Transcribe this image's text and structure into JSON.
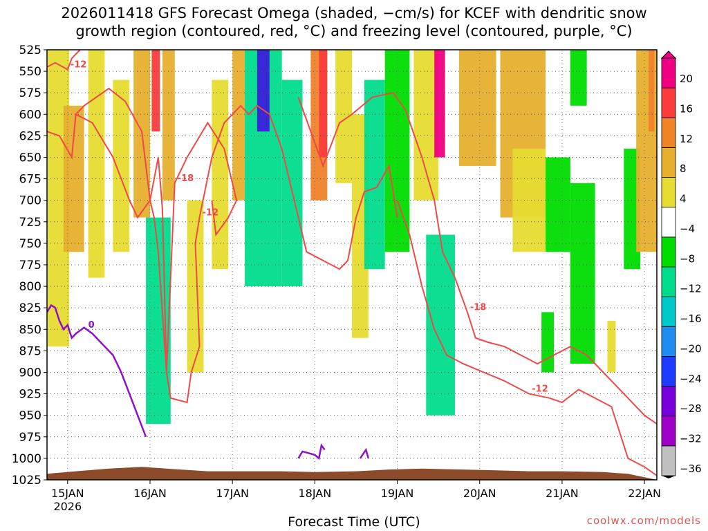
{
  "title_line1": "2026011418 GFS Forecast Omega (shaded, −cm/s) for KCEF with dendritic snow",
  "title_line2": "growth region (contoured, red, °C) and freezing level (contoured, purple, °C)",
  "xlabel": "Forecast Time (UTC)",
  "credit": "coolwx.com/models",
  "colors": {
    "dgz_contour": "#f04848",
    "freezing_contour": "#9010c8",
    "terrain": "#8b4a2a",
    "colorbar": [
      "#c0c0c0",
      "#a000c8",
      "#7800dc",
      "#1e3cff",
      "#1e8cf0",
      "#00c8c8",
      "#00dc8c",
      "#00dc00",
      "#ffffff",
      "#e6dc32",
      "#e6af2d",
      "#f08228",
      "#fa3c3c",
      "#f00082"
    ]
  },
  "chart_data": {
    "type": "heatmap",
    "title": "2026011418 GFS Forecast Omega (shaded, −cm/s) for KCEF with dendritic snow growth region (contoured, red, °C) and freezing level (contoured, purple, °C)",
    "xlabel": "Forecast Time (UTC)",
    "ylabel": "",
    "y_ticks": [
      "525",
      "550",
      "575",
      "600",
      "625",
      "650",
      "675",
      "700",
      "725",
      "750",
      "775",
      "800",
      "825",
      "850",
      "875",
      "900",
      "925",
      "950",
      "975",
      "1000",
      "1025"
    ],
    "x_ticks": [
      "15JAN",
      "16JAN",
      "17JAN",
      "18JAN",
      "19JAN",
      "20JAN",
      "21JAN",
      "22JAN"
    ],
    "x_year_label": "2026",
    "ylim": [
      1025,
      525
    ],
    "x_range_days": [
      14.75,
      22.15
    ],
    "grid": true,
    "colorbar": {
      "ticks": [
        "20",
        "16",
        "12",
        "8",
        "4",
        "−4",
        "−8",
        "−12",
        "−16",
        "−20",
        "−24",
        "−28",
        "−32",
        "−36"
      ],
      "bounds": [
        -36,
        -32,
        -28,
        -24,
        -20,
        -16,
        -12,
        -8,
        -4,
        4,
        8,
        12,
        16,
        20
      ]
    },
    "shaded_regions": [
      {
        "t0": 14.76,
        "t1": 15.02,
        "p_top": 525,
        "p_bot": 870,
        "class": "4-8"
      },
      {
        "t0": 14.95,
        "t1": 15.2,
        "p_top": 590,
        "p_bot": 760,
        "class": "8-12"
      },
      {
        "t0": 15.25,
        "t1": 15.45,
        "p_top": 525,
        "p_bot": 790,
        "class": "4-8"
      },
      {
        "t0": 15.55,
        "t1": 15.75,
        "p_top": 560,
        "p_bot": 760,
        "class": "4-8"
      },
      {
        "t0": 15.8,
        "t1": 16.0,
        "p_top": 525,
        "p_bot": 720,
        "class": "8-12"
      },
      {
        "t0": 15.95,
        "t1": 16.25,
        "p_top": 720,
        "p_bot": 960,
        "class": "-8--12"
      },
      {
        "t0": 16.02,
        "t1": 16.12,
        "p_top": 525,
        "p_bot": 620,
        "class": "16-20"
      },
      {
        "t0": 16.15,
        "t1": 16.3,
        "p_top": 525,
        "p_bot": 700,
        "class": "8-12"
      },
      {
        "t0": 16.45,
        "t1": 16.65,
        "p_top": 700,
        "p_bot": 900,
        "class": "4-8"
      },
      {
        "t0": 16.75,
        "t1": 16.95,
        "p_top": 560,
        "p_bot": 780,
        "class": "4-8"
      },
      {
        "t0": 17.0,
        "t1": 17.15,
        "p_top": 525,
        "p_bot": 700,
        "class": "8-12"
      },
      {
        "t0": 17.15,
        "t1": 17.6,
        "p_top": 525,
        "p_bot": 800,
        "class": "-8--12"
      },
      {
        "t0": 17.3,
        "t1": 17.45,
        "p_top": 525,
        "p_bot": 620,
        "class": "-24--28"
      },
      {
        "t0": 17.6,
        "t1": 17.85,
        "p_top": 560,
        "p_bot": 800,
        "class": "-8--12"
      },
      {
        "t0": 17.95,
        "t1": 18.15,
        "p_top": 525,
        "p_bot": 700,
        "class": "12-16"
      },
      {
        "t0": 18.05,
        "t1": 18.15,
        "p_top": 525,
        "p_bot": 650,
        "class": "16-20"
      },
      {
        "t0": 18.25,
        "t1": 18.45,
        "p_top": 525,
        "p_bot": 680,
        "class": "4-8"
      },
      {
        "t0": 18.45,
        "t1": 18.65,
        "p_top": 600,
        "p_bot": 860,
        "class": "4-8"
      },
      {
        "t0": 18.6,
        "t1": 18.85,
        "p_top": 560,
        "p_bot": 780,
        "class": "-8--12"
      },
      {
        "t0": 18.85,
        "t1": 19.15,
        "p_top": 525,
        "p_bot": 760,
        "class": "-4--8"
      },
      {
        "t0": 19.2,
        "t1": 19.5,
        "p_top": 525,
        "p_bot": 700,
        "class": "4-8"
      },
      {
        "t0": 19.45,
        "t1": 19.58,
        "p_top": 525,
        "p_bot": 650,
        "class": "20+"
      },
      {
        "t0": 19.35,
        "t1": 19.7,
        "p_top": 740,
        "p_bot": 950,
        "class": "-8--12"
      },
      {
        "t0": 19.75,
        "t1": 20.2,
        "p_top": 525,
        "p_bot": 660,
        "class": "8-12"
      },
      {
        "t0": 20.25,
        "t1": 20.8,
        "p_top": 525,
        "p_bot": 720,
        "class": "8-12"
      },
      {
        "t0": 20.4,
        "t1": 20.8,
        "p_top": 640,
        "p_bot": 760,
        "class": "4-8"
      },
      {
        "t0": 20.8,
        "t1": 21.1,
        "p_top": 650,
        "p_bot": 760,
        "class": "-4--8"
      },
      {
        "t0": 20.75,
        "t1": 20.9,
        "p_top": 830,
        "p_bot": 900,
        "class": "-4--8"
      },
      {
        "t0": 21.1,
        "t1": 21.3,
        "p_top": 525,
        "p_bot": 590,
        "class": "-4--8"
      },
      {
        "t0": 21.1,
        "t1": 21.4,
        "p_top": 680,
        "p_bot": 890,
        "class": "-4--8"
      },
      {
        "t0": 21.55,
        "t1": 21.65,
        "p_top": 840,
        "p_bot": 900,
        "class": "4-8"
      },
      {
        "t0": 21.75,
        "t1": 21.95,
        "p_top": 640,
        "p_bot": 780,
        "class": "-4--8"
      },
      {
        "t0": 21.9,
        "t1": 22.15,
        "p_top": 525,
        "p_bot": 760,
        "class": "8-12"
      },
      {
        "t0": 22.05,
        "t1": 22.12,
        "p_top": 525,
        "p_bot": 620,
        "class": "12-16"
      }
    ],
    "dgz_contours": [
      {
        "label": "-12",
        "points": [
          [
            14.75,
            545
          ],
          [
            14.85,
            540
          ],
          [
            15.0,
            548
          ],
          [
            15.05,
            535
          ],
          [
            15.15,
            525
          ]
        ]
      },
      {
        "label": "-12",
        "points": [
          [
            14.75,
            620
          ],
          [
            14.9,
            625
          ],
          [
            15.05,
            650
          ],
          [
            15.1,
            600
          ],
          [
            15.2,
            590
          ],
          [
            15.5,
            570
          ],
          [
            15.7,
            585
          ],
          [
            15.9,
            620
          ],
          [
            16.0,
            700
          ],
          [
            16.05,
            720
          ],
          [
            16.1,
            760
          ],
          [
            16.2,
            900
          ],
          [
            16.25,
            930
          ],
          [
            16.45,
            935
          ],
          [
            16.5,
            900
          ],
          [
            16.6,
            870
          ],
          [
            16.55,
            750
          ],
          [
            16.6,
            720
          ],
          [
            16.75,
            650
          ],
          [
            16.9,
            610
          ],
          [
            17.1,
            590
          ],
          [
            17.2,
            600
          ],
          [
            17.3,
            590
          ],
          [
            17.45,
            600
          ],
          [
            17.6,
            640
          ],
          [
            17.75,
            700
          ],
          [
            17.9,
            760
          ],
          [
            18.1,
            770
          ],
          [
            18.3,
            780
          ],
          [
            18.4,
            770
          ],
          [
            18.5,
            720
          ],
          [
            18.6,
            690
          ],
          [
            18.75,
            685
          ],
          [
            18.9,
            660
          ],
          [
            19.0,
            720
          ]
        ]
      },
      {
        "label": "-18",
        "points": [
          [
            15.1,
            600
          ],
          [
            15.3,
            610
          ],
          [
            15.55,
            650
          ],
          [
            15.75,
            700
          ],
          [
            15.85,
            720
          ],
          [
            16.0,
            700
          ],
          [
            16.1,
            650
          ],
          [
            16.15,
            710
          ],
          [
            16.2,
            900
          ],
          [
            16.3,
            680
          ],
          [
            16.45,
            650
          ],
          [
            16.7,
            610
          ],
          [
            16.9,
            640
          ],
          [
            17.0,
            680
          ],
          [
            17.05,
            700
          ],
          [
            16.95,
            720
          ],
          [
            16.8,
            740
          ],
          [
            16.75,
            700
          ]
        ]
      },
      {
        "label": "-18",
        "points": [
          [
            17.8,
            580
          ],
          [
            17.95,
            620
          ],
          [
            18.1,
            660
          ],
          [
            18.3,
            610
          ],
          [
            18.45,
            600
          ],
          [
            18.7,
            580
          ],
          [
            18.95,
            575
          ],
          [
            19.1,
            595
          ],
          [
            19.3,
            650
          ],
          [
            19.45,
            700
          ],
          [
            19.55,
            760
          ],
          [
            19.7,
            790
          ],
          [
            19.85,
            830
          ],
          [
            19.95,
            860
          ],
          [
            20.1,
            865
          ],
          [
            20.3,
            870
          ],
          [
            20.5,
            880
          ],
          [
            20.7,
            890
          ],
          [
            20.9,
            880
          ],
          [
            21.1,
            870
          ],
          [
            21.3,
            880
          ],
          [
            21.5,
            900
          ],
          [
            21.8,
            930
          ],
          [
            22.0,
            950
          ],
          [
            22.15,
            960
          ]
        ]
      },
      {
        "label": "-12",
        "points": [
          [
            19.0,
            700
          ],
          [
            19.15,
            740
          ],
          [
            19.3,
            800
          ],
          [
            19.45,
            850
          ],
          [
            19.6,
            880
          ],
          [
            19.8,
            890
          ],
          [
            20.05,
            900
          ],
          [
            20.3,
            910
          ],
          [
            20.6,
            925
          ],
          [
            20.85,
            930
          ],
          [
            21.0,
            935
          ],
          [
            21.2,
            920
          ],
          [
            21.4,
            930
          ],
          [
            21.6,
            940
          ],
          [
            21.8,
            1000
          ],
          [
            22.0,
            1010
          ],
          [
            22.15,
            1020
          ]
        ]
      }
    ],
    "freezing_contours": [
      {
        "label": "0",
        "points": [
          [
            14.75,
            830
          ],
          [
            14.8,
            822
          ],
          [
            14.85,
            825
          ],
          [
            14.9,
            840
          ],
          [
            14.95,
            850
          ],
          [
            15.0,
            845
          ],
          [
            15.05,
            860
          ],
          [
            15.1,
            855
          ],
          [
            15.2,
            848
          ],
          [
            15.3,
            855
          ],
          [
            15.45,
            870
          ],
          [
            15.55,
            880
          ],
          [
            15.65,
            900
          ],
          [
            15.75,
            925
          ],
          [
            15.85,
            950
          ],
          [
            15.95,
            975
          ]
        ]
      },
      {
        "label": "0",
        "points": [
          [
            17.8,
            1000
          ],
          [
            17.85,
            992
          ],
          [
            18.0,
            996
          ],
          [
            18.05,
            1000
          ],
          [
            18.08,
            985
          ],
          [
            18.12,
            990
          ]
        ]
      },
      {
        "label": "0",
        "points": [
          [
            18.55,
            1000
          ],
          [
            18.62,
            990
          ],
          [
            18.65,
            1000
          ]
        ]
      }
    ],
    "terrain_surface_hpa": [
      [
        14.75,
        1018
      ],
      [
        15.1,
        1015
      ],
      [
        15.5,
        1012
      ],
      [
        15.9,
        1010
      ],
      [
        16.2,
        1012
      ],
      [
        16.7,
        1015
      ],
      [
        17.2,
        1015
      ],
      [
        17.6,
        1015
      ],
      [
        18.0,
        1016
      ],
      [
        18.5,
        1015
      ],
      [
        18.9,
        1013
      ],
      [
        19.3,
        1012
      ],
      [
        19.8,
        1013
      ],
      [
        20.2,
        1014
      ],
      [
        20.6,
        1015
      ],
      [
        21.0,
        1015
      ],
      [
        21.5,
        1016
      ],
      [
        21.8,
        1018
      ],
      [
        22.0,
        1022
      ],
      [
        22.15,
        1025
      ]
    ]
  }
}
